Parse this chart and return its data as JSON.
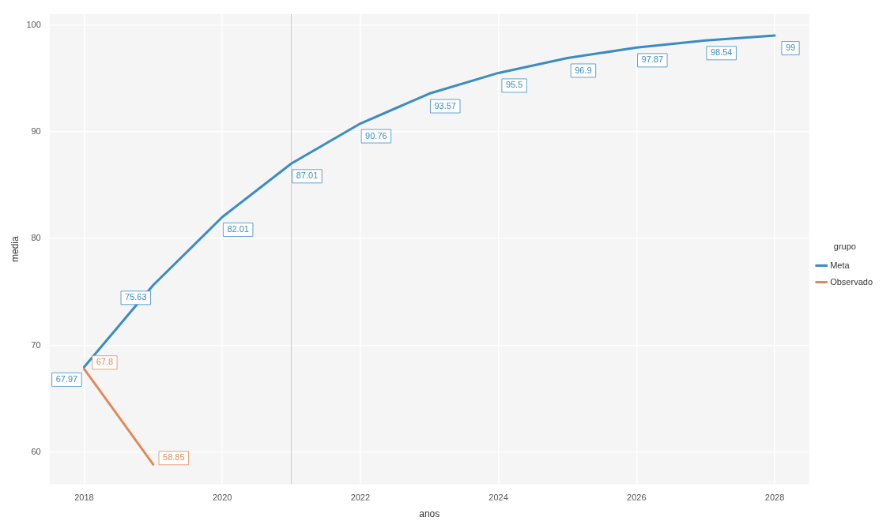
{
  "chart_data": {
    "type": "line",
    "xlabel": "anos",
    "ylabel": "media",
    "legend_title": "grupo",
    "xlim": [
      2017.5,
      2028.5
    ],
    "xticks": [
      2018,
      2020,
      2022,
      2024,
      2026,
      2028
    ],
    "ylim": [
      57,
      101
    ],
    "yticks": [
      60,
      70,
      80,
      90,
      100
    ],
    "grid": true,
    "legend": "right",
    "data_labels": true,
    "line_style": "solid",
    "marker": "none",
    "ref_lines": [
      {
        "axis": "x",
        "value": 2021,
        "color": "#cccccc"
      }
    ],
    "series": [
      {
        "name": "Meta",
        "color": "#3a8cc4",
        "x": [
          2018,
          2019,
          2020,
          2021,
          2022,
          2023,
          2024,
          2025,
          2026,
          2027,
          2028
        ],
        "values": [
          67.97,
          75.63,
          82.01,
          87.01,
          90.76,
          93.57,
          95.5,
          96.9,
          97.87,
          98.54,
          99
        ]
      },
      {
        "name": "Observado",
        "color": "#e08a5a",
        "x": [
          2018,
          2019
        ],
        "values": [
          67.8,
          58.85
        ]
      }
    ]
  }
}
